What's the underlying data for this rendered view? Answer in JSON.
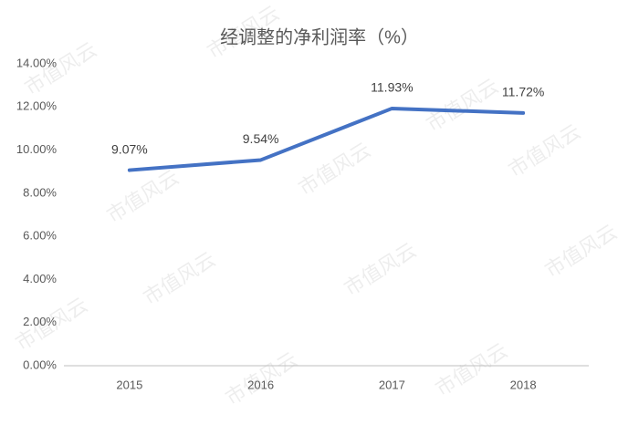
{
  "chart_data": {
    "type": "line",
    "title": "经调整的净利润率（%）",
    "categories": [
      "2015",
      "2016",
      "2017",
      "2018"
    ],
    "values": [
      9.07,
      9.54,
      11.93,
      11.72
    ],
    "value_labels": [
      "9.07%",
      "9.54%",
      "11.93%",
      "11.72%"
    ],
    "color": "#4472c4",
    "ylim": [
      0,
      14
    ],
    "yticks": [
      {
        "value": 0,
        "label": "0.00%"
      },
      {
        "value": 2,
        "label": "2.00%"
      },
      {
        "value": 4,
        "label": "4.00%"
      },
      {
        "value": 6,
        "label": "6.00%"
      },
      {
        "value": 8,
        "label": "8.00%"
      },
      {
        "value": 10,
        "label": "10.00%"
      },
      {
        "value": 12,
        "label": "12.00%"
      },
      {
        "value": 14,
        "label": "14.00%"
      }
    ],
    "grid": false,
    "watermark": "市值风云"
  }
}
